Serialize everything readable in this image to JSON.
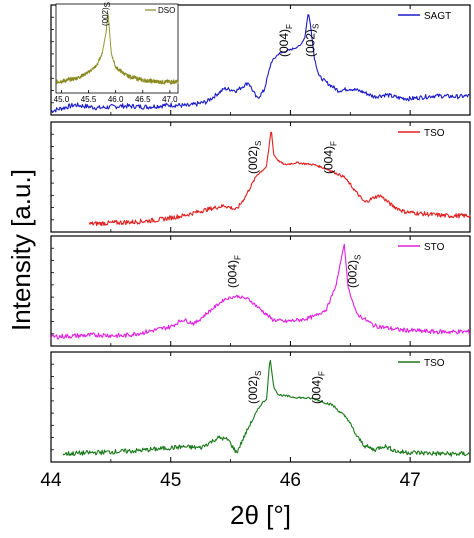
{
  "chart_data": {
    "type": "line",
    "xlabel": "2θ [°]",
    "ylabel": "Intensity [a.u.]",
    "x_ticks": [
      "44",
      "45",
      "46",
      "47"
    ],
    "xlim": [
      44.0,
      47.5
    ],
    "panels": [
      {
        "legend": "SAGT",
        "color": "#1c1cc8",
        "x_start": 44.0,
        "annotations": [
          {
            "text": "(004)",
            "sub": "F",
            "x": 45.98
          },
          {
            "text": "(002)",
            "sub": "S",
            "x": 46.2
          }
        ],
        "points": [
          [
            44.0,
            0.0
          ],
          [
            44.2,
            0.06
          ],
          [
            44.4,
            0.03
          ],
          [
            44.6,
            0.05
          ],
          [
            44.8,
            0.04
          ],
          [
            45.0,
            0.06
          ],
          [
            45.15,
            0.05
          ],
          [
            45.3,
            0.09
          ],
          [
            45.45,
            0.22
          ],
          [
            45.55,
            0.2
          ],
          [
            45.65,
            0.28
          ],
          [
            45.72,
            0.12
          ],
          [
            45.78,
            0.2
          ],
          [
            45.84,
            0.48
          ],
          [
            45.9,
            0.56
          ],
          [
            46.0,
            0.6
          ],
          [
            46.08,
            0.64
          ],
          [
            46.12,
            0.72
          ],
          [
            46.15,
            0.97
          ],
          [
            46.17,
            0.82
          ],
          [
            46.2,
            0.52
          ],
          [
            46.24,
            0.34
          ],
          [
            46.3,
            0.28
          ],
          [
            46.4,
            0.2
          ],
          [
            46.5,
            0.22
          ],
          [
            46.6,
            0.19
          ],
          [
            46.7,
            0.14
          ],
          [
            46.8,
            0.16
          ],
          [
            46.9,
            0.13
          ],
          [
            47.0,
            0.12
          ],
          [
            47.2,
            0.15
          ],
          [
            47.4,
            0.14
          ],
          [
            47.5,
            0.15
          ]
        ],
        "inset": {
          "legend": "DSO",
          "color": "#8a8a20",
          "x_ticks": [
            "45.0",
            "45.5",
            "46.0",
            "46.5",
            "47.0"
          ],
          "xlim": [
            44.9,
            47.15
          ],
          "annotation": {
            "text": "(002)",
            "sub": "S",
            "x": 45.91
          },
          "points": [
            [
              44.9,
              0.1
            ],
            [
              45.1,
              0.12
            ],
            [
              45.3,
              0.15
            ],
            [
              45.5,
              0.22
            ],
            [
              45.65,
              0.3
            ],
            [
              45.75,
              0.45
            ],
            [
              45.82,
              0.7
            ],
            [
              45.86,
              0.95
            ],
            [
              45.88,
              0.78
            ],
            [
              45.92,
              0.45
            ],
            [
              46.0,
              0.28
            ],
            [
              46.2,
              0.18
            ],
            [
              46.5,
              0.12
            ],
            [
              46.8,
              0.1
            ],
            [
              47.15,
              0.1
            ]
          ]
        }
      },
      {
        "legend": "TSO",
        "color": "#e02020",
        "x_start": 44.32,
        "annotations": [
          {
            "text": "(002)",
            "sub": "S",
            "x": 45.72
          },
          {
            "text": "(004)",
            "sub": "F",
            "x": 46.35
          }
        ],
        "points": [
          [
            44.32,
            0.04
          ],
          [
            44.5,
            0.05
          ],
          [
            44.7,
            0.06
          ],
          [
            44.9,
            0.08
          ],
          [
            45.1,
            0.12
          ],
          [
            45.3,
            0.18
          ],
          [
            45.45,
            0.22
          ],
          [
            45.55,
            0.18
          ],
          [
            45.62,
            0.3
          ],
          [
            45.72,
            0.52
          ],
          [
            45.8,
            0.6
          ],
          [
            45.84,
            0.97
          ],
          [
            45.86,
            0.72
          ],
          [
            45.9,
            0.66
          ],
          [
            45.95,
            0.62
          ],
          [
            46.05,
            0.64
          ],
          [
            46.2,
            0.62
          ],
          [
            46.3,
            0.58
          ],
          [
            46.45,
            0.5
          ],
          [
            46.55,
            0.35
          ],
          [
            46.62,
            0.25
          ],
          [
            46.7,
            0.3
          ],
          [
            46.75,
            0.32
          ],
          [
            46.85,
            0.22
          ],
          [
            46.95,
            0.16
          ],
          [
            47.1,
            0.14
          ],
          [
            47.3,
            0.12
          ],
          [
            47.5,
            0.12
          ]
        ]
      },
      {
        "legend": "STO",
        "color": "#e020e0",
        "x_start": 44.0,
        "annotations": [
          {
            "text": "(004)",
            "sub": "F",
            "x": 45.55
          },
          {
            "text": "(002)",
            "sub": "S",
            "x": 46.55
          }
        ],
        "points": [
          [
            44.0,
            0.05
          ],
          [
            44.2,
            0.06
          ],
          [
            44.4,
            0.07
          ],
          [
            44.6,
            0.06
          ],
          [
            44.8,
            0.1
          ],
          [
            45.0,
            0.15
          ],
          [
            45.1,
            0.22
          ],
          [
            45.2,
            0.18
          ],
          [
            45.3,
            0.28
          ],
          [
            45.45,
            0.42
          ],
          [
            45.55,
            0.45
          ],
          [
            45.65,
            0.42
          ],
          [
            45.75,
            0.32
          ],
          [
            45.85,
            0.22
          ],
          [
            45.95,
            0.2
          ],
          [
            46.1,
            0.22
          ],
          [
            46.2,
            0.25
          ],
          [
            46.3,
            0.32
          ],
          [
            46.38,
            0.55
          ],
          [
            46.43,
            0.85
          ],
          [
            46.45,
            0.96
          ],
          [
            46.48,
            0.55
          ],
          [
            46.55,
            0.28
          ],
          [
            46.7,
            0.16
          ],
          [
            46.9,
            0.12
          ],
          [
            47.2,
            0.1
          ],
          [
            47.5,
            0.1
          ]
        ]
      },
      {
        "legend": "TSO",
        "color": "#1a7a1a",
        "x_start": 44.1,
        "annotations": [
          {
            "text": "(002)",
            "sub": "S",
            "x": 45.72
          },
          {
            "text": "(004)",
            "sub": "F",
            "x": 46.25
          }
        ],
        "points": [
          [
            44.1,
            0.04
          ],
          [
            44.3,
            0.05
          ],
          [
            44.5,
            0.06
          ],
          [
            44.7,
            0.07
          ],
          [
            44.9,
            0.09
          ],
          [
            45.1,
            0.11
          ],
          [
            45.25,
            0.1
          ],
          [
            45.4,
            0.2
          ],
          [
            45.48,
            0.18
          ],
          [
            45.55,
            0.05
          ],
          [
            45.65,
            0.3
          ],
          [
            45.75,
            0.52
          ],
          [
            45.8,
            0.58
          ],
          [
            45.83,
            0.98
          ],
          [
            45.86,
            0.7
          ],
          [
            45.9,
            0.62
          ],
          [
            46.0,
            0.6
          ],
          [
            46.2,
            0.58
          ],
          [
            46.35,
            0.52
          ],
          [
            46.48,
            0.38
          ],
          [
            46.55,
            0.22
          ],
          [
            46.62,
            0.12
          ],
          [
            46.7,
            0.08
          ],
          [
            46.78,
            0.12
          ],
          [
            46.9,
            0.06
          ],
          [
            47.1,
            0.05
          ],
          [
            47.3,
            0.04
          ],
          [
            47.5,
            0.04
          ]
        ]
      }
    ]
  }
}
